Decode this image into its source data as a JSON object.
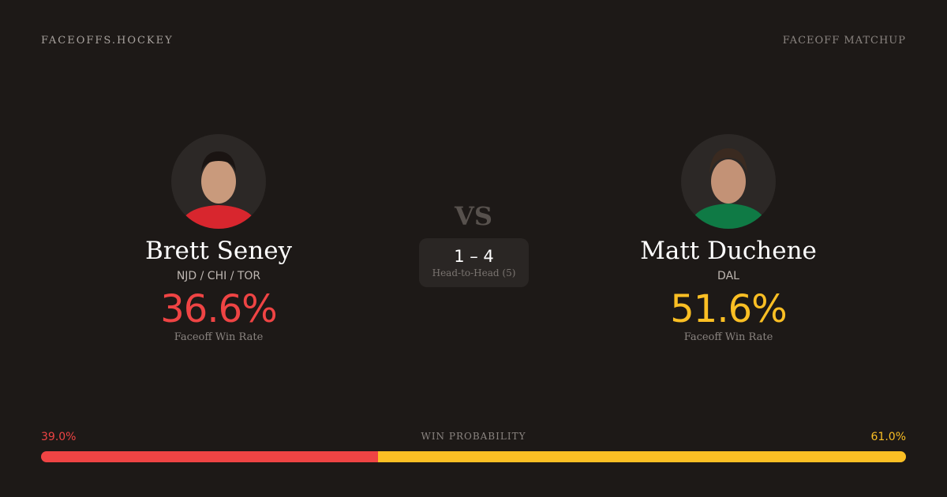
{
  "brand": "FACEOFFS.HOCKEY",
  "tag": "FACEOFF MATCHUP",
  "colors": {
    "left": "#ef4444",
    "right": "#fbbf24"
  },
  "left": {
    "name": "Brett Seney",
    "teams": "NJD / CHI / TOR",
    "rate": "36.6%",
    "rate_label": "Faceoff Win Rate",
    "jersey": "#d8262e"
  },
  "right": {
    "name": "Matt Duchene",
    "teams": "DAL",
    "rate": "51.6%",
    "rate_label": "Faceoff Win Rate",
    "jersey": "#0f7a45"
  },
  "vs": "VS",
  "h2h": {
    "score": "1 – 4",
    "label": "Head-to-Head (5)"
  },
  "prob": {
    "label": "WIN PROBABILITY",
    "left": "39.0%",
    "right": "61.0%",
    "left_value": 39.0,
    "right_value": 61.0
  }
}
